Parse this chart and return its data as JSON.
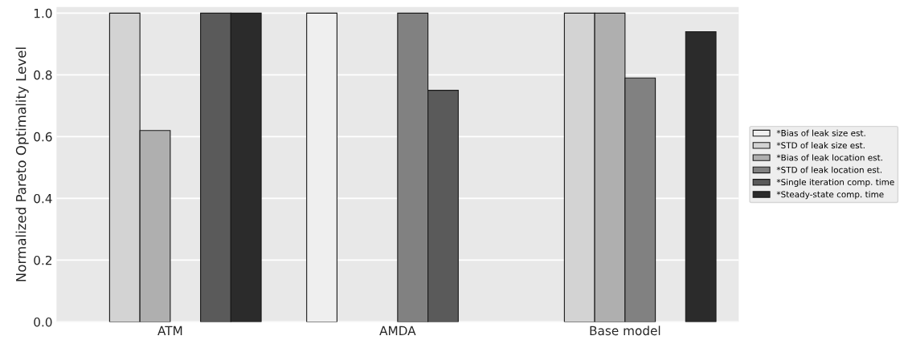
{
  "chart_data": {
    "type": "bar",
    "ylabel": "Normalized Pareto Optimality Level",
    "categories": [
      "ATM",
      "AMDA",
      "Base model"
    ],
    "series": [
      {
        "name": "*Bias of leak size est.",
        "color": "#efefef",
        "values": [
          null,
          1.0,
          null
        ]
      },
      {
        "name": "*STD of leak size est.",
        "color": "#d3d3d3",
        "values": [
          1.0,
          null,
          1.0
        ]
      },
      {
        "name": "*Bias of leak location est.",
        "color": "#afafaf",
        "values": [
          0.62,
          null,
          1.0
        ]
      },
      {
        "name": "*STD of leak location est.",
        "color": "#818181",
        "values": [
          null,
          1.0,
          0.79
        ]
      },
      {
        "name": "*Single iteration comp. time",
        "color": "#5a5a5a",
        "values": [
          1.0,
          0.75,
          null
        ]
      },
      {
        "name": "*Steady-state comp. time",
        "color": "#2b2b2b",
        "values": [
          1.0,
          null,
          0.94
        ]
      }
    ],
    "ylim": [
      0,
      1.02
    ],
    "yticks": [
      {
        "value": 0,
        "label": "0.0"
      },
      {
        "value": 0.2,
        "label": "0.2"
      },
      {
        "value": 0.4,
        "label": "0.4"
      },
      {
        "value": 0.6,
        "label": "0.6"
      },
      {
        "value": 0.8,
        "label": "0.8"
      },
      {
        "value": 1.0,
        "label": "1.0"
      }
    ],
    "grid": "y",
    "legend": "right"
  }
}
